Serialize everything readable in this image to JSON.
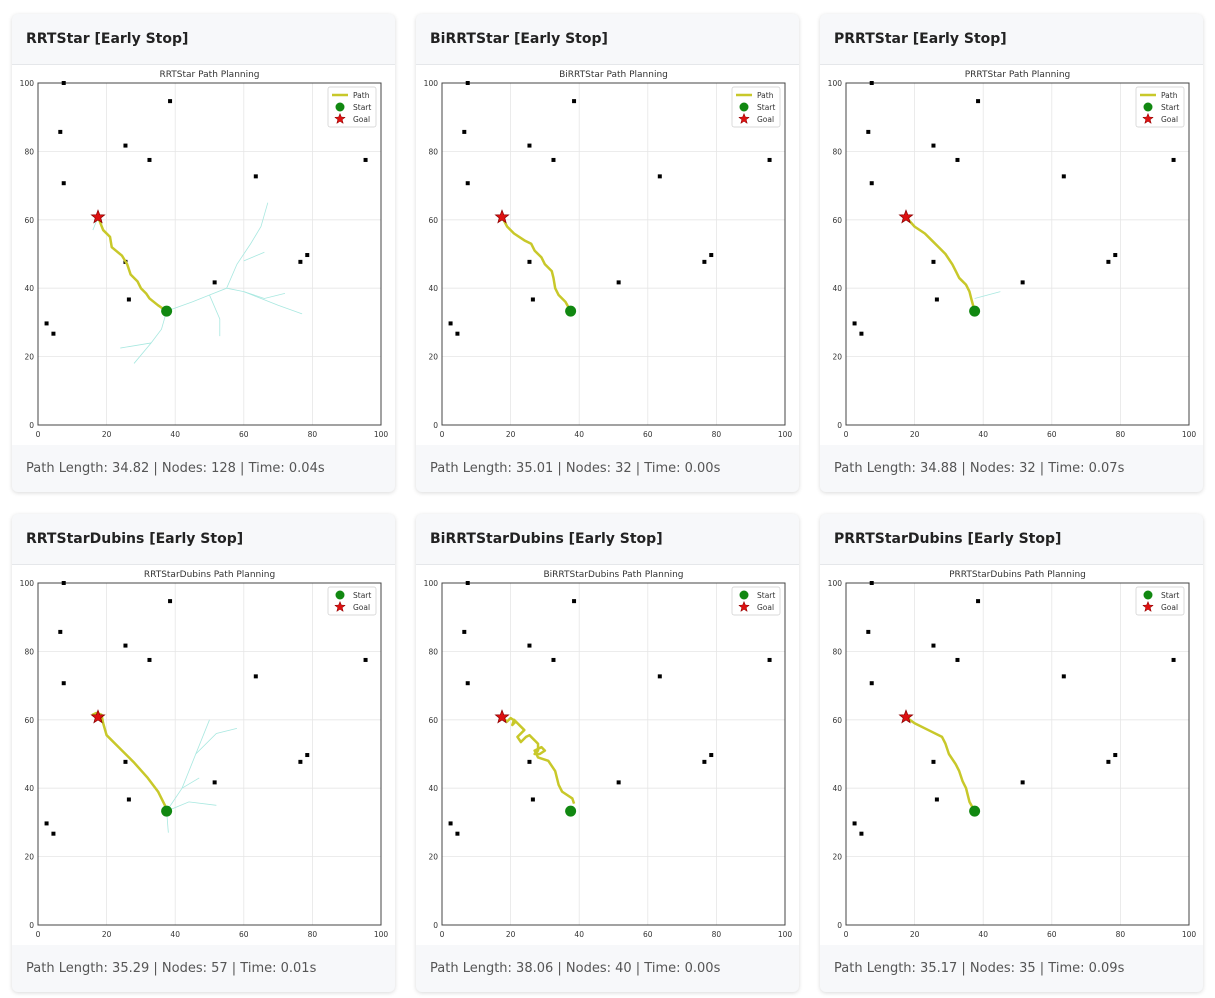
{
  "obstacles": [
    [
      7.5,
      100
    ],
    [
      38.5,
      94.7
    ],
    [
      6.5,
      85.7
    ],
    [
      25.5,
      81.7
    ],
    [
      32.5,
      77.5
    ],
    [
      7.5,
      70.7
    ],
    [
      63.5,
      72.7
    ],
    [
      95.5,
      77.5
    ],
    [
      76.5,
      47.7
    ],
    [
      78.5,
      49.7
    ],
    [
      51.5,
      41.7
    ],
    [
      25.5,
      47.7
    ],
    [
      26.5,
      36.7
    ],
    [
      2.5,
      29.7
    ],
    [
      4.5,
      26.7
    ]
  ],
  "start": [
    37.5,
    33.3
  ],
  "goal": [
    17.5,
    60.8
  ],
  "colors": {
    "path": "#c8c82a",
    "start": "#118811",
    "goal": "#dd1111",
    "tree": "#a8e8e0",
    "obstacle": "#000000"
  },
  "ticks": [
    "0",
    "20",
    "40",
    "60",
    "80",
    "100"
  ],
  "cards": [
    {
      "title": "RRTStar [Early Stop]",
      "plot_title": "RRTStar Path Planning",
      "legend": [
        "Path",
        "Start",
        "Goal"
      ],
      "stats": "Path Length: 34.82 | Nodes: 128 | Time: 0.04s",
      "path": [
        [
          17.5,
          60.8
        ],
        [
          19,
          57
        ],
        [
          21,
          55
        ],
        [
          21.5,
          52
        ],
        [
          24.5,
          49.5
        ],
        [
          26,
          47
        ],
        [
          27,
          44
        ],
        [
          29,
          42
        ],
        [
          30,
          40
        ],
        [
          31.5,
          38.5
        ],
        [
          32.5,
          37
        ],
        [
          35,
          35
        ],
        [
          37.5,
          33.3
        ]
      ],
      "tree": [
        [
          [
            37.5,
            33.3
          ],
          [
            45,
            36
          ],
          [
            50,
            38
          ],
          [
            55,
            40
          ],
          [
            60,
            39
          ],
          [
            66,
            37
          ],
          [
            72,
            38.5
          ]
        ],
        [
          [
            55,
            40
          ],
          [
            58,
            47
          ],
          [
            62,
            53
          ],
          [
            65,
            58
          ],
          [
            67,
            65
          ]
        ],
        [
          [
            60,
            48
          ],
          [
            66,
            50.5
          ]
        ],
        [
          [
            60,
            39
          ],
          [
            70,
            35
          ],
          [
            77,
            32.5
          ]
        ],
        [
          [
            50,
            38
          ],
          [
            53,
            31
          ],
          [
            53,
            26
          ]
        ],
        [
          [
            37.5,
            33.3
          ],
          [
            36,
            28
          ],
          [
            33,
            24
          ],
          [
            28,
            18
          ]
        ],
        [
          [
            33,
            24
          ],
          [
            24,
            22.5
          ]
        ],
        [
          [
            17.5,
            60.8
          ],
          [
            16,
            57
          ]
        ]
      ]
    },
    {
      "title": "BiRRTStar [Early Stop]",
      "plot_title": "BiRRTStar Path Planning",
      "legend": [
        "Path",
        "Start",
        "Goal"
      ],
      "stats": "Path Length: 35.01 | Nodes: 32 | Time: 0.00s",
      "path": [
        [
          17.5,
          60.8
        ],
        [
          19,
          58
        ],
        [
          21,
          56
        ],
        [
          24,
          54
        ],
        [
          26,
          53
        ],
        [
          27,
          51
        ],
        [
          29,
          49
        ],
        [
          30,
          47
        ],
        [
          32,
          45
        ],
        [
          32.5,
          43
        ],
        [
          33,
          40
        ],
        [
          34,
          38
        ],
        [
          36,
          36
        ],
        [
          37.5,
          33.3
        ]
      ],
      "tree": []
    },
    {
      "title": "PRRTStar [Early Stop]",
      "plot_title": "PRRTStar Path Planning",
      "legend": [
        "Path",
        "Start",
        "Goal"
      ],
      "stats": "Path Length: 34.88 | Nodes: 32 | Time: 0.07s",
      "path": [
        [
          17.5,
          60.8
        ],
        [
          20,
          58
        ],
        [
          23,
          56
        ],
        [
          25,
          54
        ],
        [
          27,
          52
        ],
        [
          29,
          50
        ],
        [
          31,
          47
        ],
        [
          32,
          45
        ],
        [
          33,
          43
        ],
        [
          35,
          41
        ],
        [
          36,
          39
        ],
        [
          36.5,
          37
        ],
        [
          37.5,
          33.3
        ]
      ],
      "tree": [
        [
          [
            37.5,
            37
          ],
          [
            45,
            39
          ]
        ]
      ]
    },
    {
      "title": "RRTStarDubins [Early Stop]",
      "plot_title": "RRTStarDubins Path Planning",
      "legend": [
        "Start",
        "Goal"
      ],
      "stats": "Path Length: 35.29 | Nodes: 57 | Time: 0.01s",
      "path": [
        [
          17.5,
          60.8
        ],
        [
          16,
          61.5
        ],
        [
          17,
          62
        ],
        [
          18.5,
          61.5
        ],
        [
          19,
          59
        ],
        [
          20,
          55.5
        ],
        [
          24,
          51.5
        ],
        [
          28,
          47.5
        ],
        [
          32,
          43
        ],
        [
          35,
          39
        ],
        [
          37,
          35
        ],
        [
          37.5,
          33.3
        ]
      ],
      "tree": [
        [
          [
            37.5,
            33.3
          ],
          [
            42,
            40
          ],
          [
            46,
            50
          ],
          [
            52,
            56
          ],
          [
            58,
            57.5
          ]
        ],
        [
          [
            46,
            50
          ],
          [
            50,
            60
          ]
        ],
        [
          [
            37.5,
            33.3
          ],
          [
            44,
            36
          ],
          [
            52,
            35
          ]
        ],
        [
          [
            37.5,
            33.3
          ],
          [
            38,
            27
          ]
        ],
        [
          [
            42,
            40
          ],
          [
            47,
            43
          ]
        ]
      ]
    },
    {
      "title": "BiRRTStarDubins [Early Stop]",
      "plot_title": "BiRRTStarDubins Path Planning",
      "legend": [
        "Start",
        "Goal"
      ],
      "stats": "Path Length: 38.06 | Nodes: 40 | Time: 0.00s",
      "path": [
        [
          17.5,
          60.8
        ],
        [
          19,
          59.5
        ],
        [
          20,
          60.5
        ],
        [
          21.5,
          59.5
        ],
        [
          20.5,
          58.5
        ],
        [
          21,
          60
        ],
        [
          24,
          57
        ],
        [
          22,
          55
        ],
        [
          23,
          53.5
        ],
        [
          24.5,
          55
        ],
        [
          25.5,
          55.5
        ],
        [
          28,
          53
        ],
        [
          28,
          51
        ],
        [
          27,
          50
        ],
        [
          28.5,
          50
        ],
        [
          30,
          51
        ],
        [
          29,
          52
        ],
        [
          27,
          51
        ],
        [
          28,
          49
        ],
        [
          31,
          48
        ],
        [
          33,
          45
        ],
        [
          34,
          41
        ],
        [
          35,
          39
        ],
        [
          38,
          37
        ],
        [
          38.5,
          35.5
        ]
      ],
      "tree": []
    },
    {
      "title": "PRRTStarDubins [Early Stop]",
      "plot_title": "PRRTStarDubins Path Planning",
      "legend": [
        "Start",
        "Goal"
      ],
      "stats": "Path Length: 35.17 | Nodes: 35 | Time: 0.09s",
      "path": [
        [
          17.5,
          60.8
        ],
        [
          20,
          59
        ],
        [
          24,
          57
        ],
        [
          28,
          55
        ],
        [
          29,
          53
        ],
        [
          30,
          50
        ],
        [
          32,
          47
        ],
        [
          33,
          45
        ],
        [
          34,
          42
        ],
        [
          35,
          40
        ],
        [
          35.5,
          38
        ],
        [
          36,
          36
        ],
        [
          37.5,
          33.3
        ]
      ],
      "tree": []
    }
  ]
}
